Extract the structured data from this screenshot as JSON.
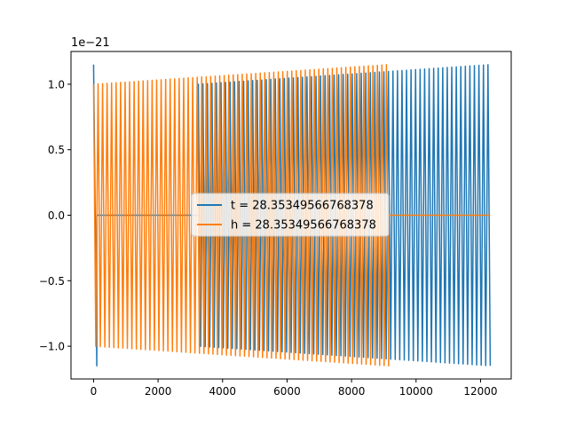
{
  "chart_data": {
    "type": "line",
    "title": "",
    "xlabel": "",
    "ylabel": "",
    "offset_label": "1e−21",
    "xlim": [
      -700,
      12950
    ],
    "ylim": [
      -1.25,
      1.25
    ],
    "x_ticks": [
      0,
      2000,
      4000,
      6000,
      8000,
      10000,
      12000
    ],
    "x_tick_labels": [
      "0",
      "2000",
      "4000",
      "6000",
      "8000",
      "10000",
      "12000"
    ],
    "y_ticks": [
      -1.0,
      -0.5,
      0.0,
      0.5,
      1.0
    ],
    "y_tick_labels": [
      "−1.0",
      "−0.5",
      "0.0",
      "0.5",
      "1.0"
    ],
    "grid": false,
    "legend_position": "center",
    "series": [
      {
        "name": "t = 28.35349566768378",
        "color": "#1f77b4",
        "segments": [
          {
            "x_start": 0,
            "x_end": 100,
            "amp_start": 1.15,
            "amp_end": 1.15,
            "period": 100,
            "note": "initial spike"
          },
          {
            "x_start": 100,
            "x_end": 3250,
            "amp_start": 0.0,
            "amp_end": 0.0,
            "period": 0
          },
          {
            "x_start": 3250,
            "x_end": 12300,
            "amp_start": 1.0,
            "amp_end": 1.15,
            "period": 140
          }
        ]
      },
      {
        "name": "h = 28.35349566768378",
        "color": "#ff7f0e",
        "segments": [
          {
            "x_start": 0,
            "x_end": 9150,
            "amp_start": 1.0,
            "amp_end": 1.15,
            "period": 140
          },
          {
            "x_start": 9150,
            "x_end": 12300,
            "amp_start": 0.0,
            "amp_end": 0.0,
            "period": 0
          }
        ]
      }
    ]
  }
}
